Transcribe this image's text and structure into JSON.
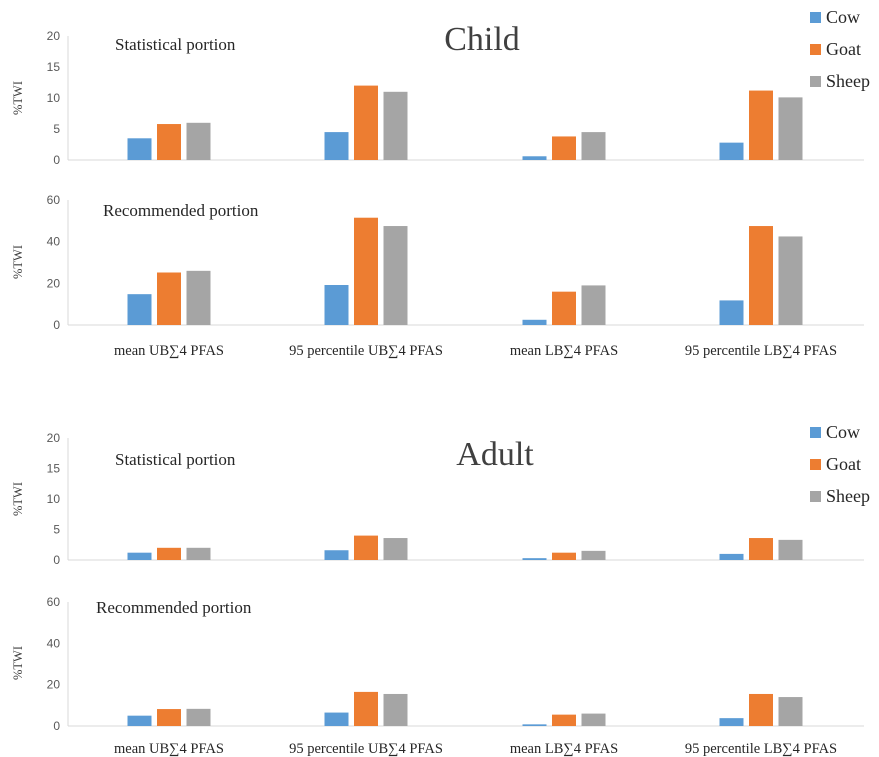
{
  "colors": {
    "Cow": "#5b9bd5",
    "Goat": "#ed7d31",
    "Sheep": "#a5a5a5"
  },
  "chart_data": [
    {
      "type": "bar",
      "title": "Child",
      "annotation": "Statistical portion",
      "ylabel": "%TWI",
      "ylim": [
        0,
        20
      ],
      "yticks": [
        0,
        5,
        10,
        15,
        20
      ],
      "categories": [
        "mean UB∑4 PFAS",
        "95 percentile UB∑4 PFAS",
        "mean LB∑4 PFAS",
        "95 percentile LB∑4 PFAS"
      ],
      "show_categories": false,
      "legend": "top-right",
      "series": [
        {
          "name": "Cow",
          "values": [
            3.5,
            4.5,
            0.6,
            2.8
          ]
        },
        {
          "name": "Goat",
          "values": [
            5.8,
            12.0,
            3.8,
            11.2
          ]
        },
        {
          "name": "Sheep",
          "values": [
            6.0,
            11.0,
            4.5,
            10.1
          ]
        }
      ]
    },
    {
      "type": "bar",
      "title": "",
      "annotation": "Recommended portion",
      "ylabel": "%TWI",
      "ylim": [
        0,
        60
      ],
      "yticks": [
        0,
        20,
        40,
        60
      ],
      "categories": [
        "mean UB∑4 PFAS",
        "95 percentile UB∑4 PFAS",
        "mean LB∑4 PFAS",
        "95 percentile LB∑4 PFAS"
      ],
      "show_categories": true,
      "series": [
        {
          "name": "Cow",
          "values": [
            14.8,
            19.2,
            2.5,
            11.8
          ]
        },
        {
          "name": "Goat",
          "values": [
            25.2,
            51.5,
            16.0,
            47.5
          ]
        },
        {
          "name": "Sheep",
          "values": [
            26.0,
            47.5,
            19.0,
            42.5
          ]
        }
      ]
    },
    {
      "type": "bar",
      "title": "Adult",
      "annotation": "Statistical portion",
      "ylabel": "%TWI",
      "ylim": [
        0,
        20
      ],
      "yticks": [
        0,
        5,
        10,
        15,
        20
      ],
      "categories": [
        "mean UB∑4 PFAS",
        "95 percentile UB∑4 PFAS",
        "mean LB∑4 PFAS",
        "95 percentile LB∑4 PFAS"
      ],
      "show_categories": false,
      "legend": "top-right",
      "series": [
        {
          "name": "Cow",
          "values": [
            1.2,
            1.6,
            0.3,
            1.0
          ]
        },
        {
          "name": "Goat",
          "values": [
            2.0,
            4.0,
            1.2,
            3.6
          ]
        },
        {
          "name": "Sheep",
          "values": [
            2.0,
            3.6,
            1.5,
            3.3
          ]
        }
      ]
    },
    {
      "type": "bar",
      "title": "",
      "annotation": "Recommended portion",
      "ylabel": "%TWI",
      "ylim": [
        0,
        60
      ],
      "yticks": [
        0,
        20,
        40,
        60
      ],
      "categories": [
        "mean UB∑4 PFAS",
        "95 percentile UB∑4 PFAS",
        "mean LB∑4 PFAS",
        "95 percentile LB∑4 PFAS"
      ],
      "show_categories": true,
      "series": [
        {
          "name": "Cow",
          "values": [
            5.0,
            6.5,
            0.8,
            3.8
          ]
        },
        {
          "name": "Goat",
          "values": [
            8.2,
            16.5,
            5.5,
            15.5
          ]
        },
        {
          "name": "Sheep",
          "values": [
            8.3,
            15.5,
            6.0,
            14.0
          ]
        }
      ]
    }
  ]
}
